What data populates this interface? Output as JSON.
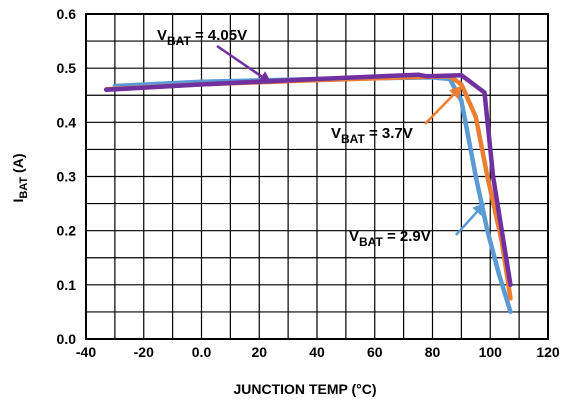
{
  "chart_data": {
    "type": "line",
    "title": "",
    "xlabel": "JUNCTION TEMP (°C)",
    "ylabel": {
      "main": "I",
      "sub": "BAT",
      "suffix": " (A)"
    },
    "xlim": [
      -40,
      120
    ],
    "ylim": [
      0.0,
      0.6
    ],
    "x_ticks": [
      -40,
      -20,
      0,
      20,
      40,
      60,
      80,
      100,
      120
    ],
    "x_tick_labels": [
      "-40",
      "-20",
      "0.0",
      "20",
      "40",
      "60",
      "80",
      "100",
      "120"
    ],
    "y_ticks": [
      0.0,
      0.1,
      0.2,
      0.3,
      0.4,
      0.5,
      0.6
    ],
    "y_tick_labels": [
      "0.0",
      "0.1",
      "0.2",
      "0.3",
      "0.4",
      "0.5",
      "0.6"
    ],
    "grid": true,
    "grid_x_step": 10,
    "grid_y_step": 0.05,
    "series": [
      {
        "name": "VBAT = 2.9V",
        "color": "#5b9bd5",
        "points": [
          [
            -30,
            0.467
          ],
          [
            0,
            0.475
          ],
          [
            40,
            0.48
          ],
          [
            80,
            0.483
          ],
          [
            86,
            0.48
          ],
          [
            90,
            0.44
          ],
          [
            95,
            0.3
          ],
          [
            99,
            0.2
          ],
          [
            103,
            0.12
          ],
          [
            107,
            0.05
          ]
        ]
      },
      {
        "name": "VBAT = 3.7V",
        "color": "#ed7d31",
        "points": [
          [
            -33,
            0.461
          ],
          [
            0,
            0.47
          ],
          [
            40,
            0.478
          ],
          [
            70,
            0.483
          ],
          [
            86,
            0.485
          ],
          [
            90,
            0.47
          ],
          [
            95,
            0.41
          ],
          [
            99,
            0.3
          ],
          [
            104,
            0.18
          ],
          [
            107,
            0.075
          ]
        ]
      },
      {
        "name": "VBAT = 4.05V",
        "color": "#7030a0",
        "points": [
          [
            -33,
            0.46
          ],
          [
            0,
            0.47
          ],
          [
            40,
            0.48
          ],
          [
            75,
            0.488
          ],
          [
            78,
            0.485
          ],
          [
            90,
            0.487
          ],
          [
            98,
            0.455
          ],
          [
            101,
            0.3
          ],
          [
            104,
            0.2
          ],
          [
            107,
            0.1
          ]
        ]
      }
    ],
    "annotations": [
      {
        "main": "V",
        "sub": "BAT",
        "rest": " = 4.05V",
        "series": 2
      },
      {
        "main": "V",
        "sub": "BAT",
        "rest": " = 3.7V",
        "series": 1
      },
      {
        "main": "V",
        "sub": "BAT",
        "rest": " = 2.9V",
        "series": 0
      }
    ]
  }
}
